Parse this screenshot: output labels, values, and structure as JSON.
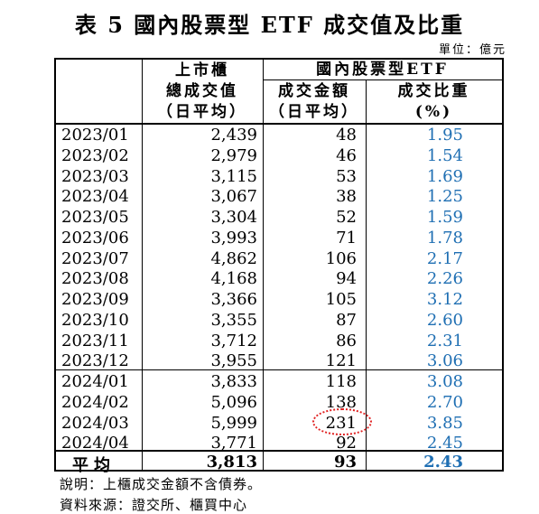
{
  "title": "表 5  國內股票型 ETF 成交值及比重",
  "unit": "單位：億元",
  "headers": {
    "col1_line1": "上市櫃",
    "col1_line2": "總成交值",
    "col1_line3": "（日平均）",
    "group": "國內股票型ETF",
    "col2_line1": "成交金額",
    "col2_line2": "（日平均）",
    "col3_line1": "成交比重",
    "col3_line2": "(%)"
  },
  "rows": [
    {
      "date": "2023/01",
      "total": "2,439",
      "amount": "48",
      "ratio": "1.95"
    },
    {
      "date": "2023/02",
      "total": "2,979",
      "amount": "46",
      "ratio": "1.54"
    },
    {
      "date": "2023/03",
      "total": "3,115",
      "amount": "53",
      "ratio": "1.69"
    },
    {
      "date": "2023/04",
      "total": "3,067",
      "amount": "38",
      "ratio": "1.25"
    },
    {
      "date": "2023/05",
      "total": "3,304",
      "amount": "52",
      "ratio": "1.59"
    },
    {
      "date": "2023/06",
      "total": "3,993",
      "amount": "71",
      "ratio": "1.78"
    },
    {
      "date": "2023/07",
      "total": "4,862",
      "amount": "106",
      "ratio": "2.17"
    },
    {
      "date": "2023/08",
      "total": "4,168",
      "amount": "94",
      "ratio": "2.26"
    },
    {
      "date": "2023/09",
      "total": "3,366",
      "amount": "105",
      "ratio": "3.12"
    },
    {
      "date": "2023/10",
      "total": "3,355",
      "amount": "87",
      "ratio": "2.60"
    },
    {
      "date": "2023/11",
      "total": "3,712",
      "amount": "86",
      "ratio": "2.31"
    },
    {
      "date": "2023/12",
      "total": "3,955",
      "amount": "121",
      "ratio": "3.06"
    },
    {
      "date": "2024/01",
      "total": "3,833",
      "amount": "118",
      "ratio": "3.08"
    },
    {
      "date": "2024/02",
      "total": "5,096",
      "amount": "138",
      "ratio": "2.70"
    },
    {
      "date": "2024/03",
      "total": "5,999",
      "amount": "231",
      "ratio": "3.85"
    },
    {
      "date": "2024/04",
      "total": "3,771",
      "amount": "92",
      "ratio": "2.45"
    }
  ],
  "average": {
    "label": "平均",
    "total": "3,813",
    "amount": "93",
    "ratio": "2.43"
  },
  "notes": {
    "note1": "說明：上櫃成交金額不含債券。",
    "note2": "資料來源：證交所、櫃買中心"
  },
  "colors": {
    "ratio_text": "#1f6fb3",
    "highlight_circle": "#e02020"
  }
}
